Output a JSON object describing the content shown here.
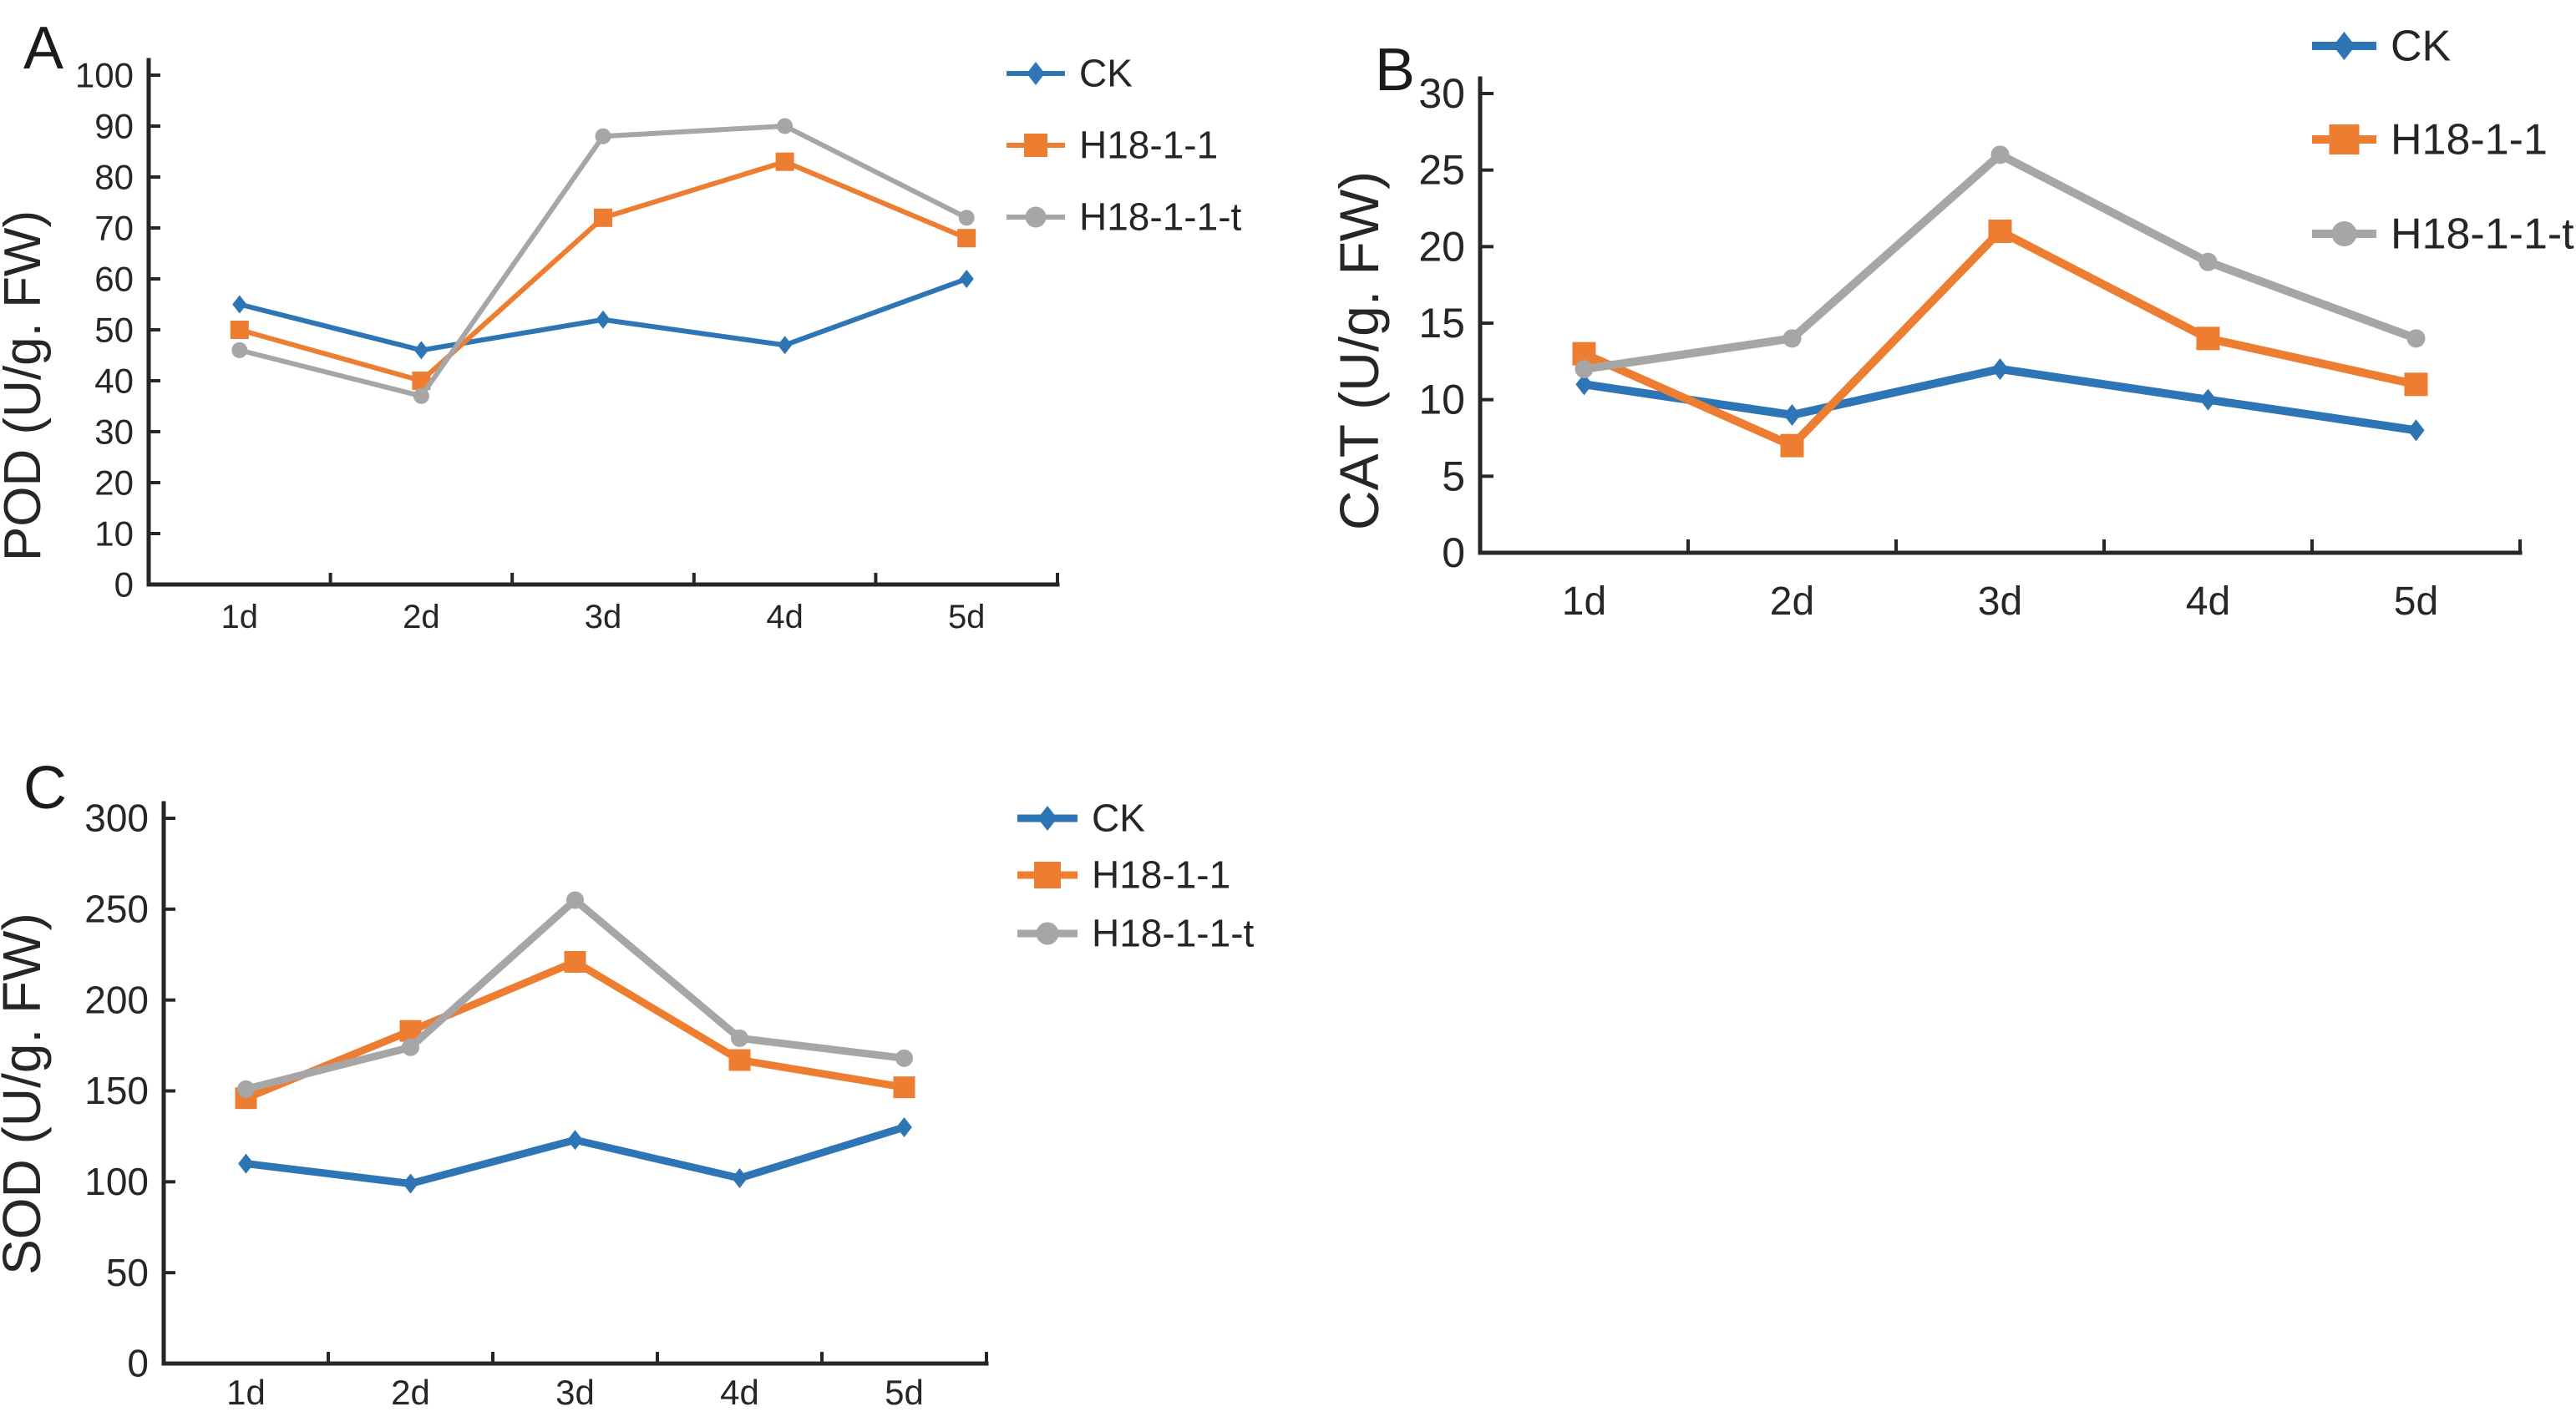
{
  "figure": {
    "background_color": "#ffffff",
    "axis_color": "#262626",
    "text_color": "#262626"
  },
  "chart_data": [
    {
      "panel_label": "A",
      "type": "line",
      "title": "",
      "ylabel": "POD (U/g. FW)",
      "xlabel": "",
      "categories": [
        "1d",
        "2d",
        "3d",
        "4d",
        "5d"
      ],
      "ylim": [
        0,
        100
      ],
      "ytick_step": 10,
      "ytick_labels": [
        "0",
        "10",
        "20",
        "30",
        "40",
        "50",
        "60",
        "70",
        "80",
        "90",
        "100"
      ],
      "grid": false,
      "legend_position": "right",
      "series": [
        {
          "name": "CK",
          "color": "#2E75B6",
          "marker": "diamond",
          "values": [
            55,
            46,
            52,
            47,
            60
          ]
        },
        {
          "name": "H18-1-1",
          "color": "#ED7D31",
          "marker": "square",
          "values": [
            50,
            40,
            72,
            83,
            68
          ]
        },
        {
          "name": "H18-1-1-t",
          "color": "#A6A6A6",
          "marker": "circle",
          "values": [
            46,
            37,
            88,
            90,
            72
          ]
        }
      ]
    },
    {
      "panel_label": "B",
      "type": "line",
      "title": "",
      "ylabel": "CAT (U/g. FW)",
      "xlabel": "",
      "categories": [
        "1d",
        "2d",
        "3d",
        "4d",
        "5d"
      ],
      "ylim": [
        0,
        30
      ],
      "ytick_step": 5,
      "ytick_labels": [
        "0",
        "5",
        "10",
        "15",
        "20",
        "25",
        "30"
      ],
      "grid": false,
      "legend_position": "right",
      "series": [
        {
          "name": "CK",
          "color": "#2E75B6",
          "marker": "diamond",
          "values": [
            11,
            9,
            12,
            10,
            8
          ]
        },
        {
          "name": "H18-1-1",
          "color": "#ED7D31",
          "marker": "square",
          "values": [
            13,
            7,
            21,
            14,
            11
          ]
        },
        {
          "name": "H18-1-1-t",
          "color": "#A6A6A6",
          "marker": "circle",
          "values": [
            12,
            14,
            26,
            19,
            14
          ]
        }
      ]
    },
    {
      "panel_label": "C",
      "type": "line",
      "title": "",
      "ylabel": "SOD (U/g. FW)",
      "xlabel": "",
      "categories": [
        "1d",
        "2d",
        "3d",
        "4d",
        "5d"
      ],
      "ylim": [
        0,
        300
      ],
      "ytick_step": 50,
      "ytick_labels": [
        "0",
        "50",
        "100",
        "150",
        "200",
        "250",
        "300"
      ],
      "grid": false,
      "legend_position": "right",
      "series": [
        {
          "name": "CK",
          "color": "#2E75B6",
          "marker": "diamond",
          "values": [
            110,
            99,
            123,
            102,
            130
          ]
        },
        {
          "name": "H18-1-1",
          "color": "#ED7D31",
          "marker": "square",
          "values": [
            146,
            183,
            221,
            167,
            152
          ]
        },
        {
          "name": "H18-1-1-t",
          "color": "#A6A6A6",
          "marker": "circle",
          "values": [
            151,
            174,
            255,
            179,
            168
          ]
        }
      ]
    }
  ]
}
